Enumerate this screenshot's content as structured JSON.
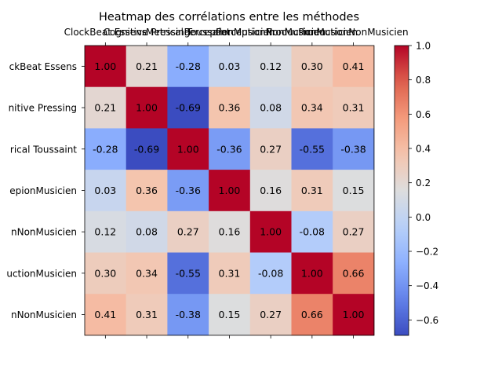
{
  "chart_data": {
    "type": "heatmap",
    "title": "Heatmap des corrélations entre les méthodes",
    "xlabel": "",
    "ylabel": "",
    "x_tick_labels": [
      "ClockBeat Essens",
      "Cognitive Pressing",
      "Metrical Toussaint",
      "PerceptionMusicien",
      "PerceptionNonMusicien",
      "ProductionMusicien",
      "ProductionNonMusicien"
    ],
    "y_tick_labels": [
      "ClockBeat Essens",
      "Cognitive Pressing",
      "Metrical Toussaint",
      "PerceptionMusicien",
      "PerceptionNonMusicien",
      "ProductionMusicien",
      "ProductionNonMusicien"
    ],
    "y_tick_labels_visible": [
      "ckBeat Essens",
      "nitive Pressing",
      "rical Toussaint",
      "epionMusicien",
      "nNonMusicien",
      "uctionMusicien",
      "nNonMusicien"
    ],
    "matrix": [
      [
        1.0,
        0.21,
        -0.28,
        0.03,
        0.12,
        0.3,
        0.41
      ],
      [
        0.21,
        1.0,
        -0.69,
        0.36,
        0.08,
        0.34,
        0.31
      ],
      [
        -0.28,
        -0.69,
        1.0,
        -0.36,
        0.27,
        -0.55,
        -0.38
      ],
      [
        0.03,
        0.36,
        -0.36,
        1.0,
        0.16,
        0.31,
        0.15
      ],
      [
        0.12,
        0.08,
        0.27,
        0.16,
        1.0,
        -0.08,
        0.27
      ],
      [
        0.3,
        0.34,
        -0.55,
        0.31,
        -0.08,
        1.0,
        0.66
      ],
      [
        0.41,
        0.31,
        -0.38,
        0.15,
        0.27,
        0.66,
        1.0
      ]
    ],
    "value_labels": [
      [
        "1.00",
        "0.21",
        "-0.28",
        "0.03",
        "0.12",
        "0.30",
        "0.41"
      ],
      [
        "0.21",
        "1.00",
        "-0.69",
        "0.36",
        "0.08",
        "0.34",
        "0.31"
      ],
      [
        "-0.28",
        "-0.69",
        "1.00",
        "-0.36",
        "0.27",
        "-0.55",
        "-0.38"
      ],
      [
        "0.03",
        "0.36",
        "-0.36",
        "1.00",
        "0.16",
        "0.31",
        "0.15"
      ],
      [
        "0.12",
        "0.08",
        "0.27",
        "0.16",
        "1.00",
        "-0.08",
        "0.27"
      ],
      [
        "0.30",
        "0.34",
        "-0.55",
        "0.31",
        "-0.08",
        "1.00",
        "0.66"
      ],
      [
        "0.41",
        "0.31",
        "-0.38",
        "0.15",
        "0.27",
        "0.66",
        "1.00"
      ]
    ],
    "colormap": "coolwarm",
    "vmin": -0.69,
    "vmax": 1.0,
    "colorbar_ticks": [
      -0.6,
      -0.4,
      -0.2,
      0.0,
      0.2,
      0.4,
      0.6,
      0.8,
      1.0
    ],
    "colorbar_tick_labels": [
      "−0.6",
      "−0.4",
      "−0.2",
      "0.0",
      "0.2",
      "0.4",
      "0.6",
      "0.8",
      "1.0"
    ],
    "x_tick_position": "top",
    "grid": false
  }
}
